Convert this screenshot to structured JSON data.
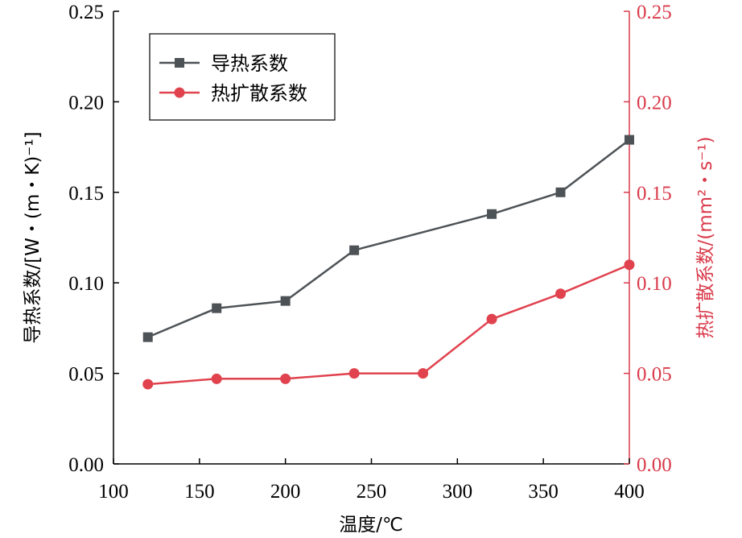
{
  "chart_data": {
    "type": "line",
    "x": [
      120,
      160,
      200,
      240,
      320,
      360,
      400
    ],
    "x_axis": {
      "label": "温度/℃",
      "range": [
        100,
        400
      ],
      "ticks": [
        "100",
        "150",
        "200",
        "250",
        "300",
        "350",
        "400"
      ]
    },
    "y_left": {
      "label": "导热系数/[W・(m・K)⁻¹]",
      "range": [
        0,
        0.25
      ],
      "ticks": [
        "0.00",
        "0.05",
        "0.10",
        "0.15",
        "0.20",
        "0.25"
      ],
      "color": "#000000"
    },
    "y_right": {
      "label": "热扩散系数/(mm²・s⁻¹)",
      "range": [
        0,
        0.25
      ],
      "ticks": [
        "0.00",
        "0.05",
        "0.10",
        "0.15",
        "0.20",
        "0.25"
      ],
      "color": "#d93a4a"
    },
    "series": [
      {
        "name": "导热系数",
        "axis": "left",
        "marker": "square",
        "color": "#4d5256",
        "points": [
          [
            120,
            0.07
          ],
          [
            160,
            0.086
          ],
          [
            200,
            0.09
          ],
          [
            240,
            0.118
          ],
          [
            320,
            0.138
          ],
          [
            360,
            0.15
          ],
          [
            400,
            0.179
          ]
        ]
      },
      {
        "name": "热扩散系数",
        "axis": "right",
        "marker": "circle",
        "color": "#e0424e",
        "points": [
          [
            120,
            0.044
          ],
          [
            160,
            0.047
          ],
          [
            200,
            0.047
          ],
          [
            240,
            0.05
          ],
          [
            280,
            0.05
          ],
          [
            320,
            0.08
          ],
          [
            360,
            0.094
          ],
          [
            400,
            0.11
          ]
        ]
      }
    ],
    "legend": {
      "placement": "top-left"
    },
    "grid": false
  }
}
